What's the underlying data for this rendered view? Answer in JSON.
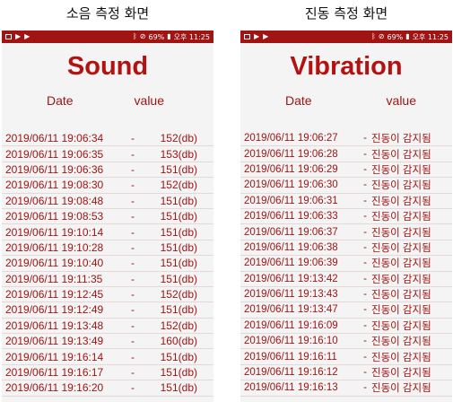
{
  "left": {
    "caption": "소음 측정 화면",
    "status": {
      "battery": "69%",
      "time": "오후 11:25"
    },
    "title": "Sound",
    "col_date": "Date",
    "col_value": "value",
    "sep": "-",
    "rows": [
      {
        "date": "2019/06/11 19:06:34",
        "value": "152(db)"
      },
      {
        "date": "2019/06/11 19:06:35",
        "value": "153(db)"
      },
      {
        "date": "2019/06/11 19:06:36",
        "value": "151(db)"
      },
      {
        "date": "2019/06/11 19:08:30",
        "value": "152(db)"
      },
      {
        "date": "2019/06/11 19:08:48",
        "value": "151(db)"
      },
      {
        "date": "2019/06/11 19:08:53",
        "value": "151(db)"
      },
      {
        "date": "2019/06/11 19:10:14",
        "value": "151(db)"
      },
      {
        "date": "2019/06/11 19:10:28",
        "value": "151(db)"
      },
      {
        "date": "2019/06/11 19:10:40",
        "value": "151(db)"
      },
      {
        "date": "2019/06/11 19:11:35",
        "value": "151(db)"
      },
      {
        "date": "2019/06/11 19:12:45",
        "value": "152(db)"
      },
      {
        "date": "2019/06/11 19:12:49",
        "value": "151(db)"
      },
      {
        "date": "2019/06/11 19:13:48",
        "value": "152(db)"
      },
      {
        "date": "2019/06/11 19:13:49",
        "value": "160(db)"
      },
      {
        "date": "2019/06/11 19:16:14",
        "value": "151(db)"
      },
      {
        "date": "2019/06/11 19:16:17",
        "value": "151(db)"
      },
      {
        "date": "2019/06/11 19:16:20",
        "value": "151(db)"
      }
    ]
  },
  "right": {
    "caption": "진동 측정 화면",
    "status": {
      "battery": "69%",
      "time": "오후 11:25"
    },
    "title": "Vibration",
    "col_date": "Date",
    "col_value": "value",
    "sep": "-",
    "rows": [
      {
        "date": "2019/06/11 19:06:27",
        "value": "진동이 감지됨"
      },
      {
        "date": "2019/06/11 19:06:28",
        "value": "진동이 감지됨"
      },
      {
        "date": "2019/06/11 19:06:29",
        "value": "진동이 감지됨"
      },
      {
        "date": "2019/06/11 19:06:30",
        "value": "진동이 감지됨"
      },
      {
        "date": "2019/06/11 19:06:31",
        "value": "진동이 감지됨"
      },
      {
        "date": "2019/06/11 19:06:33",
        "value": "진동이 감지됨"
      },
      {
        "date": "2019/06/11 19:06:37",
        "value": "진동이 감지됨"
      },
      {
        "date": "2019/06/11 19:06:38",
        "value": "진동이 감지됨"
      },
      {
        "date": "2019/06/11 19:06:39",
        "value": "진동이 감지됨"
      },
      {
        "date": "2019/06/11 19:13:42",
        "value": "진동이 감지됨"
      },
      {
        "date": "2019/06/11 19:13:43",
        "value": "진동이 감지됨"
      },
      {
        "date": "2019/06/11 19:13:47",
        "value": "진동이 감지됨"
      },
      {
        "date": "2019/06/11 19:16:09",
        "value": "진동이 감지됨"
      },
      {
        "date": "2019/06/11 19:16:10",
        "value": "진동이 감지됨"
      },
      {
        "date": "2019/06/11 19:16:11",
        "value": "진동이 감지됨"
      },
      {
        "date": "2019/06/11 19:16:12",
        "value": "진동이 감지됨"
      },
      {
        "date": "2019/06/11 19:16:13",
        "value": "진동이 감지됨"
      }
    ]
  },
  "colors": {
    "accent": "#a01414",
    "title": "#b31212",
    "screen_bg": "#f4f4f4"
  },
  "icons": [
    "image-icon",
    "play-icon",
    "play-icon",
    "bluetooth-icon",
    "mute-icon",
    "battery-icon"
  ]
}
